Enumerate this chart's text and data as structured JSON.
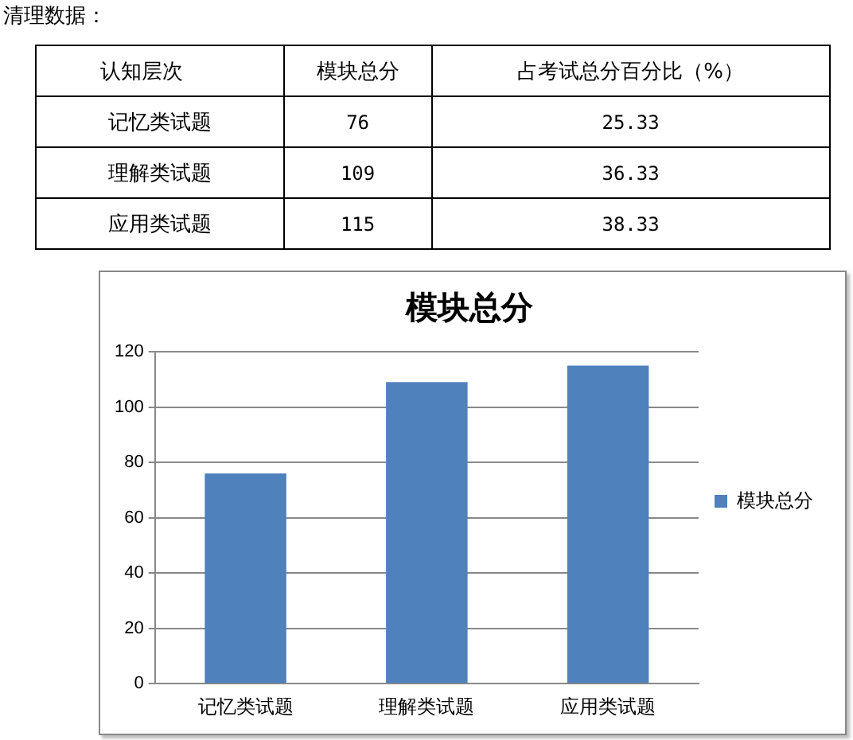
{
  "chart_data": [
    {
      "type": "other",
      "title": "清理数据：",
      "data_labels": true,
      "legend_title": "认知层次",
      "categories": [
        "记忆类试题",
        "理解类试题",
        "应用类试题"
      ],
      "series": [
        {
          "name": "模块总分",
          "values": [
            76,
            109,
            115
          ]
        },
        {
          "name": "占考试总分百分比（%）",
          "values": [
            25.33,
            36.33,
            38.33
          ]
        }
      ]
    },
    {
      "type": "bar",
      "title": "模块总分",
      "categories": [
        "记忆类试题",
        "理解类试题",
        "应用类试题"
      ],
      "series": [
        {
          "name": "模块总分",
          "color": "#4f81bd",
          "values": [
            76,
            109,
            115
          ]
        }
      ],
      "ylim": [
        0,
        120
      ],
      "yticks": [
        0,
        20,
        40,
        60,
        80,
        100,
        120
      ],
      "grid": "y",
      "legend": "right"
    }
  ]
}
